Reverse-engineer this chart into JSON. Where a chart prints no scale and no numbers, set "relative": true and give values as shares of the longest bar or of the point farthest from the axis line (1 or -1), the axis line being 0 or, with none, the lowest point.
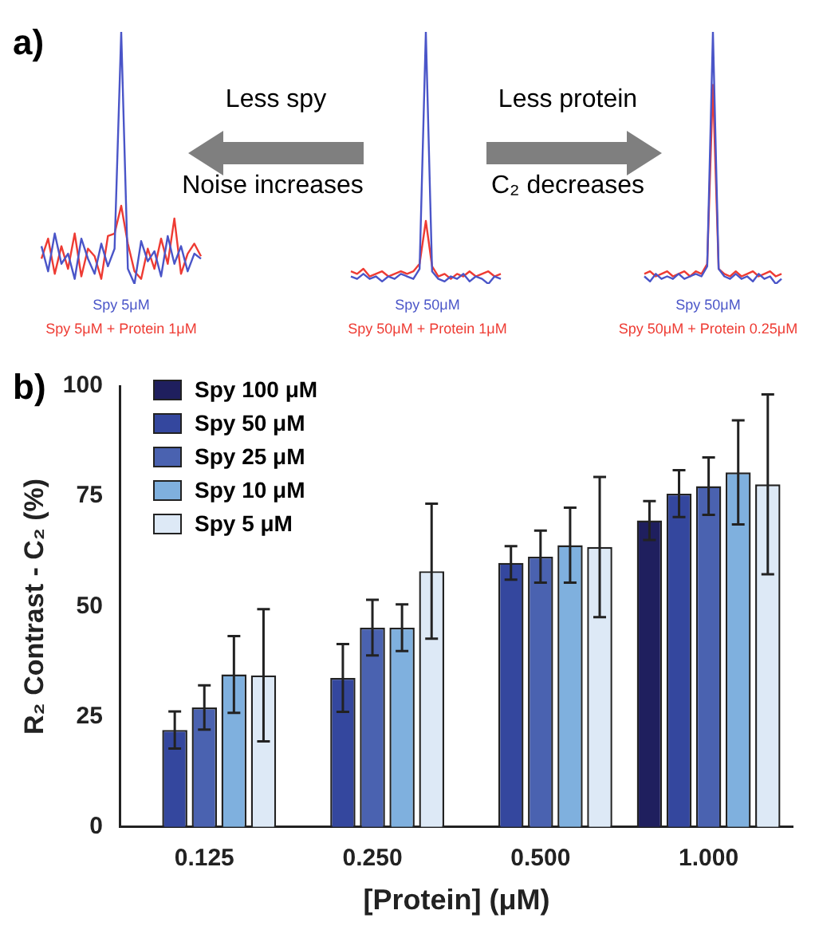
{
  "chart_data": [
    {
      "type": "line",
      "relative": true,
      "marker": "none",
      "line_style": "solid",
      "categories": [
        null,
        null,
        null,
        null,
        null,
        null,
        null,
        null,
        null,
        null,
        null,
        null,
        null,
        null,
        null,
        null,
        null,
        null,
        null,
        null,
        null,
        null,
        null,
        null,
        null
      ],
      "series": [
        {
          "color": "#4a55c8",
          "values": [
            0.15,
            0.05,
            0.2,
            0.08,
            0.12,
            0.02,
            0.18,
            0.1,
            0.04,
            0.16,
            0.07,
            0.14,
            1,
            0.06,
            0.0,
            0.17,
            0.09,
            0.13,
            0.03,
            0.19,
            0.08,
            0.15,
            0.05,
            0.12,
            0.1
          ]
        },
        {
          "color": "#ee3b33",
          "values": [
            0.1,
            0.18,
            0.04,
            0.15,
            0.06,
            0.2,
            0.03,
            0.14,
            0.11,
            0.02,
            0.19,
            0.2,
            0.31,
            0.16,
            0.05,
            0.02,
            0.14,
            0.06,
            0.18,
            0.08,
            0.26,
            0.04,
            0.12,
            0.16,
            0.11
          ]
        }
      ],
      "annotations": [
        "a)",
        "Spy 5μM",
        "Spy 5μM + Protein 1μM"
      ]
    },
    {
      "type": "line",
      "relative": true,
      "marker": "none",
      "line_style": "solid",
      "categories": [
        null,
        null,
        null,
        null,
        null,
        null,
        null,
        null,
        null,
        null,
        null,
        null,
        null,
        null,
        null,
        null,
        null,
        null,
        null,
        null,
        null,
        null,
        null,
        null,
        null
      ],
      "series": [
        {
          "color": "#4a55c8",
          "values": [
            0.03,
            0.02,
            0.04,
            0.02,
            0.03,
            0.01,
            0.03,
            0.02,
            0.04,
            0.03,
            0.02,
            0.06,
            1,
            0.05,
            0.02,
            0.01,
            0.03,
            0.02,
            0.04,
            0.01,
            0.03,
            0.02,
            0.0,
            0.03,
            0.02
          ]
        },
        {
          "color": "#ee3b33",
          "values": [
            0.05,
            0.04,
            0.06,
            0.03,
            0.04,
            0.05,
            0.03,
            0.04,
            0.05,
            0.04,
            0.05,
            0.08,
            0.25,
            0.07,
            0.03,
            0.04,
            0.02,
            0.04,
            0.03,
            0.05,
            0.03,
            0.04,
            0.05,
            0.03,
            0.04
          ]
        }
      ],
      "annotations": [
        "Less spy",
        "Noise increases",
        "Spy 50μM",
        "Spy 50μM + Protein 1μM"
      ]
    },
    {
      "type": "line",
      "relative": true,
      "marker": "none",
      "line_style": "solid",
      "categories": [
        null,
        null,
        null,
        null,
        null,
        null,
        null,
        null,
        null,
        null,
        null,
        null,
        null,
        null,
        null,
        null,
        null,
        null,
        null,
        null,
        null,
        null,
        null,
        null,
        null
      ],
      "series": [
        {
          "color": "#4a55c8",
          "values": [
            0.03,
            0.01,
            0.04,
            0.02,
            0.03,
            0.02,
            0.04,
            0.02,
            0.03,
            0.04,
            0.03,
            0.07,
            1,
            0.06,
            0.03,
            0.02,
            0.04,
            0.02,
            0.03,
            0.01,
            0.04,
            0.02,
            0.03,
            0.0,
            0.02
          ]
        },
        {
          "color": "#ee3b33",
          "values": [
            0.04,
            0.05,
            0.03,
            0.04,
            0.05,
            0.03,
            0.04,
            0.05,
            0.03,
            0.05,
            0.04,
            0.08,
            0.79,
            0.06,
            0.04,
            0.03,
            0.05,
            0.03,
            0.04,
            0.05,
            0.03,
            0.04,
            0.05,
            0.03,
            0.04
          ]
        }
      ],
      "annotations": [
        "Less protein",
        "C₂ decreases",
        "Spy 50μM",
        "Spy 50μM + Protein 0.25μM"
      ]
    },
    {
      "type": "bar",
      "categories": [
        "0.125",
        "0.250",
        "0.500",
        "1.000"
      ],
      "series": [
        {
          "name": "Spy 100 μM",
          "color": "#1f1f5e",
          "values": [
            null,
            null,
            null,
            69.5
          ],
          "errors": [
            null,
            null,
            null,
            4.4
          ]
        },
        {
          "name": "Spy 50 μM",
          "color": "#34479e",
          "values": [
            22,
            33.8,
            59.9,
            75.6
          ],
          "errors": [
            4.2,
            7.7,
            3.8,
            5.3
          ]
        },
        {
          "name": "Spy 25 μM",
          "color": "#4a62b0",
          "values": [
            27.1,
            45.2,
            61.3,
            77.3
          ],
          "errors": [
            5,
            6.3,
            5.9,
            6.5
          ]
        },
        {
          "name": "Spy 10 μM",
          "color": "#7fb0de",
          "values": [
            34.6,
            45.2,
            63.9,
            80.4
          ],
          "errors": [
            8.7,
            5.3,
            8.5,
            11.8
          ]
        },
        {
          "name": "Spy 5 μM",
          "color": "#dde9f6",
          "values": [
            34.4,
            58,
            63.5,
            77.7
          ],
          "errors": [
            15,
            15.3,
            15.9,
            20.4
          ]
        }
      ],
      "xlabel": "[Protein] (μM)",
      "ylabel": "R₂ Contrast - C₂ (%)",
      "ylim": [
        0,
        100
      ],
      "yticks": [
        0,
        25,
        50,
        75,
        100
      ],
      "grid": false,
      "legend": "top left",
      "annotations": [
        "b)"
      ]
    }
  ]
}
